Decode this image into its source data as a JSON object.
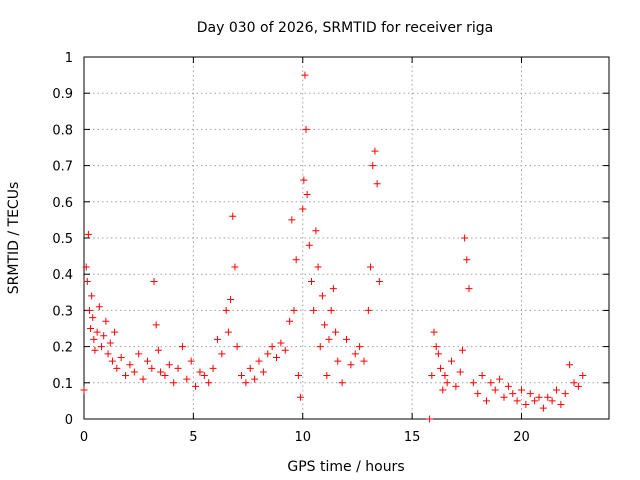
{
  "chart_data": {
    "type": "scatter",
    "title": "Day 030 of 2026, SRMTID for receiver riga",
    "xlabel": "GPS time / hours",
    "ylabel": "SRMTID / TECUs",
    "xlim": [
      0,
      24
    ],
    "ylim": [
      0,
      1
    ],
    "xticks": [
      0,
      5,
      10,
      15,
      20
    ],
    "xtick_labels": [
      "0",
      "5",
      "10",
      "15",
      "20"
    ],
    "yticks": [
      0,
      0.1,
      0.2,
      0.3,
      0.4,
      0.5,
      0.6,
      0.7,
      0.8,
      0.9,
      1
    ],
    "ytick_labels": [
      "0",
      "0.1",
      "0.2",
      "0.3",
      "0.4",
      "0.5",
      "0.6",
      "0.7",
      "0.8",
      "0.9",
      "1"
    ],
    "grid": true,
    "marker": "+",
    "color": "#ff0000",
    "series": [
      {
        "name": "SRMTID",
        "x": [
          0.0,
          0.1,
          0.15,
          0.2,
          0.25,
          0.3,
          0.35,
          0.4,
          0.45,
          0.5,
          0.6,
          0.7,
          0.8,
          0.9,
          1.0,
          1.1,
          1.2,
          1.3,
          1.4,
          1.5,
          1.7,
          1.9,
          2.1,
          2.3,
          2.5,
          2.7,
          2.9,
          3.1,
          3.2,
          3.3,
          3.4,
          3.5,
          3.7,
          3.9,
          4.1,
          4.3,
          4.5,
          4.7,
          4.9,
          5.1,
          5.3,
          5.5,
          5.7,
          5.9,
          6.1,
          6.3,
          6.5,
          6.6,
          6.7,
          6.8,
          6.9,
          7.0,
          7.2,
          7.4,
          7.6,
          7.8,
          8.0,
          8.2,
          8.4,
          8.6,
          8.8,
          9.0,
          9.2,
          9.4,
          9.5,
          9.6,
          9.7,
          9.8,
          9.9,
          10.0,
          10.05,
          10.1,
          10.15,
          10.2,
          10.3,
          10.4,
          10.5,
          10.6,
          10.7,
          10.8,
          10.9,
          11.0,
          11.1,
          11.2,
          11.3,
          11.4,
          11.5,
          11.6,
          11.8,
          12.0,
          12.2,
          12.4,
          12.6,
          12.8,
          13.0,
          13.1,
          13.2,
          13.3,
          13.4,
          13.5,
          15.8,
          15.9,
          16.0,
          16.1,
          16.2,
          16.3,
          16.4,
          16.5,
          16.6,
          16.8,
          17.0,
          17.2,
          17.3,
          17.4,
          17.5,
          17.6,
          17.8,
          18.0,
          18.2,
          18.4,
          18.6,
          18.8,
          19.0,
          19.2,
          19.4,
          19.6,
          19.8,
          20.0,
          20.2,
          20.4,
          20.6,
          20.8,
          21.0,
          21.2,
          21.4,
          21.6,
          21.8,
          22.0,
          22.2,
          22.4,
          22.6,
          22.8
        ],
        "y": [
          0.08,
          0.42,
          0.38,
          0.51,
          0.3,
          0.25,
          0.34,
          0.28,
          0.22,
          0.19,
          0.24,
          0.31,
          0.2,
          0.23,
          0.27,
          0.18,
          0.21,
          0.16,
          0.24,
          0.14,
          0.17,
          0.12,
          0.15,
          0.13,
          0.18,
          0.11,
          0.16,
          0.14,
          0.38,
          0.26,
          0.19,
          0.13,
          0.12,
          0.15,
          0.1,
          0.14,
          0.2,
          0.11,
          0.16,
          0.09,
          0.13,
          0.12,
          0.1,
          0.14,
          0.22,
          0.18,
          0.3,
          0.24,
          0.33,
          0.56,
          0.42,
          0.2,
          0.12,
          0.1,
          0.14,
          0.11,
          0.16,
          0.13,
          0.18,
          0.2,
          0.17,
          0.21,
          0.19,
          0.27,
          0.55,
          0.3,
          0.44,
          0.12,
          0.06,
          0.58,
          0.66,
          0.95,
          0.8,
          0.62,
          0.48,
          0.38,
          0.3,
          0.52,
          0.42,
          0.2,
          0.34,
          0.26,
          0.12,
          0.22,
          0.3,
          0.36,
          0.24,
          0.16,
          0.1,
          0.22,
          0.15,
          0.18,
          0.2,
          0.16,
          0.3,
          0.42,
          0.7,
          0.74,
          0.65,
          0.38,
          0.0,
          0.12,
          0.24,
          0.2,
          0.18,
          0.14,
          0.08,
          0.12,
          0.1,
          0.16,
          0.09,
          0.13,
          0.19,
          0.5,
          0.44,
          0.36,
          0.1,
          0.07,
          0.12,
          0.05,
          0.1,
          0.08,
          0.11,
          0.06,
          0.09,
          0.07,
          0.05,
          0.08,
          0.04,
          0.07,
          0.05,
          0.06,
          0.03,
          0.06,
          0.05,
          0.08,
          0.04,
          0.07,
          0.15,
          0.1,
          0.09,
          0.12
        ]
      }
    ]
  }
}
